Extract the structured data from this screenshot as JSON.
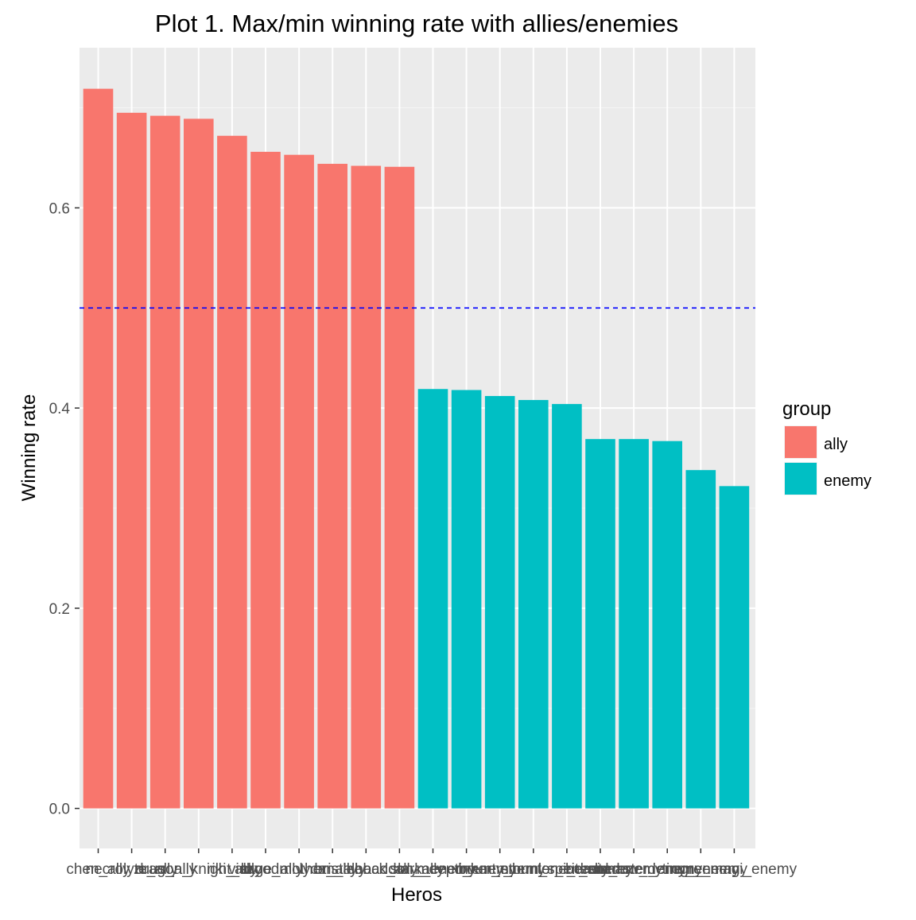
{
  "chart_data": {
    "type": "bar",
    "title": "Plot 1. Max/min winning rate with allies/enemies",
    "xlabel": "Heros",
    "ylabel": "Winning rate",
    "ylim": [
      -0.04,
      0.76
    ],
    "yticks": [
      "0.0",
      "0.2",
      "0.4",
      "0.6"
    ],
    "ytick_values": [
      0.0,
      0.2,
      0.4,
      0.6
    ],
    "reference_line": {
      "value": 0.5,
      "style": "dashed",
      "color": "#0000FF"
    },
    "legend": {
      "title": "group",
      "placement": "right",
      "entries": [
        {
          "label": "ally",
          "color": "#F8766D"
        },
        {
          "label": "enemy",
          "color": "#00BFC4"
        }
      ]
    },
    "grid": true,
    "categories": [
      "chen_ally",
      "necrolyte_ally",
      "zuus_ally",
      "dragon_knight_ally",
      "riki_ally",
      "visage_ally",
      "broodmother_ally",
      "lycan_ally",
      "bristleback_ally",
      "abaddon_ally",
      "slark_enemy",
      "meepo_enemy",
      "tinker_enemy",
      "bounty_hunter_enemy",
      "storm_spirit_enemy",
      "lone_druid_enemy",
      "beastmaster_enemy",
      "shadow_demon_enemy",
      "tiny_enemy",
      "ogre_magi_enemy"
    ],
    "values": [
      0.719,
      0.695,
      0.692,
      0.689,
      0.672,
      0.656,
      0.653,
      0.644,
      0.642,
      0.641,
      0.419,
      0.418,
      0.412,
      0.408,
      0.404,
      0.369,
      0.369,
      0.367,
      0.338,
      0.322
    ],
    "groups": [
      "ally",
      "ally",
      "ally",
      "ally",
      "ally",
      "ally",
      "ally",
      "ally",
      "ally",
      "ally",
      "enemy",
      "enemy",
      "enemy",
      "enemy",
      "enemy",
      "enemy",
      "enemy",
      "enemy",
      "enemy",
      "enemy"
    ]
  }
}
